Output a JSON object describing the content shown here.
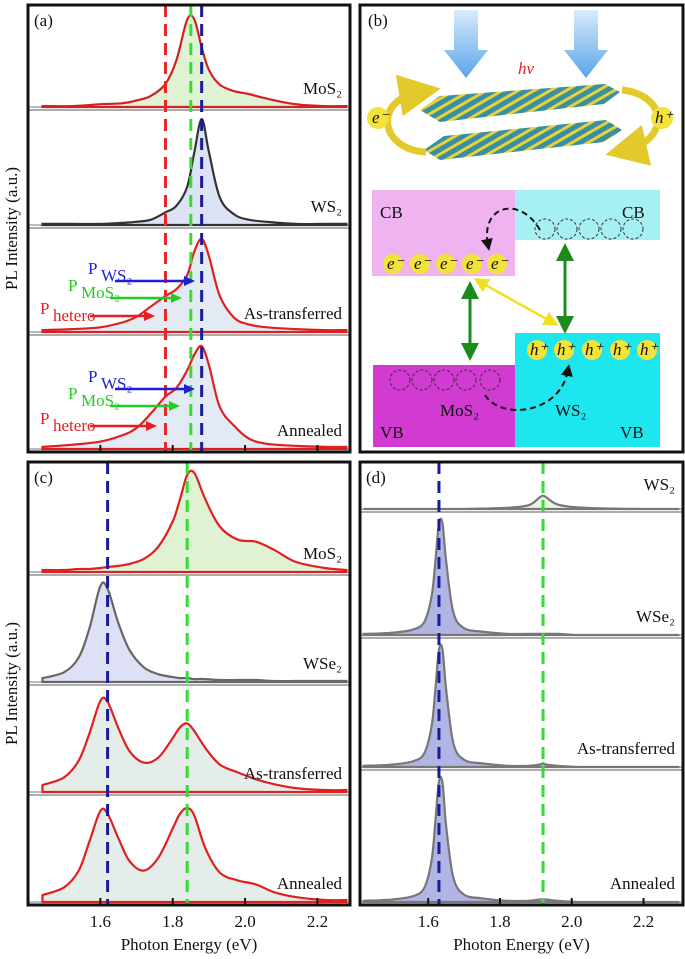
{
  "chart_data": [
    {
      "type": "line",
      "label": "(a)",
      "ylabel": "PL Intensity (a.u.)",
      "xlim": [
        1.4,
        2.29
      ],
      "xticks": [
        1.6,
        1.8,
        2,
        2.2
      ],
      "show_tick_labels": false,
      "x": [
        1.44,
        1.52,
        1.6,
        1.66,
        1.7,
        1.74,
        1.78,
        1.81,
        1.84,
        1.86,
        1.88,
        1.9,
        1.93,
        1.97,
        2.01,
        2.06,
        2.14,
        2.22,
        2.28
      ],
      "series": [
        {
          "name": "MoS₂",
          "color": "#d42020",
          "fill": "#d7efc8",
          "values": [
            0.01,
            0.01,
            0.03,
            0.04,
            0.07,
            0.12,
            0.25,
            0.5,
            0.94,
            0.94,
            0.64,
            0.4,
            0.24,
            0.17,
            0.14,
            0.09,
            0.03,
            0.01,
            0.01
          ]
        },
        {
          "name": "WS₂",
          "color": "#333333",
          "fill": "#d3dcf2",
          "values": [
            0.01,
            0.01,
            0.01,
            0.02,
            0.03,
            0.05,
            0.12,
            0.18,
            0.36,
            0.69,
            1,
            0.69,
            0.26,
            0.1,
            0.05,
            0.03,
            0.01,
            0.01,
            0.01
          ]
        },
        {
          "name": "As-transferred",
          "color": "#e02020",
          "fill": "#dbe6f0",
          "values": [
            0.02,
            0.03,
            0.05,
            0.1,
            0.16,
            0.27,
            0.38,
            0.45,
            0.6,
            0.85,
            0.98,
            0.8,
            0.38,
            0.15,
            0.08,
            0.05,
            0.03,
            0.02,
            0.02
          ]
        },
        {
          "name": "Annealed",
          "color": "#e02020",
          "fill": "#dbe6f0",
          "values": [
            0.02,
            0.04,
            0.07,
            0.13,
            0.2,
            0.34,
            0.5,
            0.58,
            0.75,
            0.9,
            0.98,
            0.8,
            0.4,
            0.22,
            0.1,
            0.05,
            0.03,
            0.02,
            0.02
          ]
        }
      ],
      "vlines": [
        {
          "x": 1.78,
          "color": "#e8262a"
        },
        {
          "x": 1.85,
          "color": "#33dd33"
        },
        {
          "x": 1.88,
          "color": "#1a1a9a"
        }
      ],
      "annotations": [
        {
          "text": "P",
          "sub": "WS₂",
          "color": "#1f1fd6"
        },
        {
          "text": "P",
          "sub": "MoS₂",
          "color": "#22cc22"
        },
        {
          "text": "P",
          "sub": "hetero",
          "color": "#e61e1e"
        },
        {
          "text": "P",
          "sub": "WS₂",
          "color": "#1f1fd6"
        },
        {
          "text": "P",
          "sub": "MoS₂",
          "color": "#22cc22"
        },
        {
          "text": "P",
          "sub": "hetero",
          "color": "#e61e1e"
        }
      ]
    },
    {
      "type": "line",
      "label": "(c)",
      "ylabel": "PL Intensity (a.u.)",
      "xlabel": "Photon Energy (eV)",
      "xlim": [
        1.4,
        2.29
      ],
      "xticks": [
        1.6,
        1.8,
        {
          "value": 2,
          "label": "2.0"
        },
        2.2
      ],
      "show_tick_labels": true,
      "x": [
        1.44,
        1.5,
        1.54,
        1.57,
        1.6,
        1.62,
        1.65,
        1.68,
        1.72,
        1.76,
        1.8,
        1.82,
        1.84,
        1.86,
        1.89,
        1.93,
        1.98,
        2.03,
        2.08,
        2.14,
        2.22,
        2.28
      ],
      "series": [
        {
          "name": "MoS₂",
          "color": "#e02020",
          "fill": "#d7efc8",
          "values": [
            0.02,
            0.02,
            0.03,
            0.03,
            0.04,
            0.05,
            0.06,
            0.08,
            0.13,
            0.25,
            0.5,
            0.72,
            0.96,
            0.98,
            0.72,
            0.45,
            0.32,
            0.3,
            0.22,
            0.1,
            0.04,
            0.02
          ]
        },
        {
          "name": "WSe₂",
          "color": "#666666",
          "fill": "#d6daf2",
          "values": [
            0.04,
            0.1,
            0.25,
            0.55,
            0.98,
            0.95,
            0.6,
            0.33,
            0.15,
            0.08,
            0.05,
            0.04,
            0.04,
            0.03,
            0.03,
            0.02,
            0.02,
            0.02,
            0.01,
            0.01,
            0.01,
            0.01
          ]
        },
        {
          "name": "As-transferred",
          "color": "#e02020",
          "fill": "#dfe9e6",
          "values": [
            0.07,
            0.15,
            0.32,
            0.6,
            0.93,
            0.92,
            0.65,
            0.42,
            0.3,
            0.35,
            0.55,
            0.66,
            0.7,
            0.62,
            0.45,
            0.28,
            0.2,
            0.13,
            0.08,
            0.04,
            0.02,
            0.02
          ]
        },
        {
          "name": "Annealed",
          "color": "#e02020",
          "fill": "#dfe9e6",
          "values": [
            0.07,
            0.15,
            0.32,
            0.62,
            0.93,
            0.9,
            0.65,
            0.42,
            0.32,
            0.45,
            0.75,
            0.9,
            0.96,
            0.88,
            0.55,
            0.3,
            0.22,
            0.18,
            0.1,
            0.05,
            0.02,
            0.02
          ]
        }
      ],
      "vlines": [
        {
          "x": 1.62,
          "color": "#1a1a9a"
        },
        {
          "x": 1.84,
          "color": "#33dd33"
        }
      ]
    },
    {
      "type": "line",
      "label": "(d)",
      "xlabel": "Photon Energy (eV)",
      "xlim": [
        1.41,
        2.31
      ],
      "xticks": [
        1.6,
        1.8,
        {
          "value": 2,
          "label": "2.0"
        },
        2.2
      ],
      "show_tick_labels": true,
      "x": [
        1.42,
        1.5,
        1.56,
        1.59,
        1.61,
        1.62,
        1.63,
        1.64,
        1.65,
        1.67,
        1.7,
        1.75,
        1.82,
        1.88,
        1.91,
        1.92,
        1.93,
        1.96,
        2.02,
        2.12,
        2.22,
        2.3
      ],
      "series": [
        {
          "name": "WS₂",
          "color": "#777777",
          "fill": "#e3f3dc",
          "values": [
            0,
            0,
            0,
            0,
            0,
            0,
            0,
            0,
            0,
            0,
            0,
            0.01,
            0.03,
            0.1,
            0.3,
            0.35,
            0.3,
            0.12,
            0.04,
            0.01,
            0,
            0
          ]
        },
        {
          "name": "WSe₂",
          "color": "#777777",
          "fill": "#9ca3dd",
          "values": [
            0.01,
            0.02,
            0.05,
            0.12,
            0.35,
            0.65,
            0.98,
            0.98,
            0.65,
            0.2,
            0.06,
            0.03,
            0.01,
            0.01,
            0.01,
            0.01,
            0.01,
            0.01,
            0,
            0,
            0,
            0
          ]
        },
        {
          "name": "As-transferred",
          "color": "#777777",
          "fill": "#9ca3dd",
          "values": [
            0.01,
            0.02,
            0.05,
            0.12,
            0.35,
            0.65,
            0.98,
            0.98,
            0.65,
            0.2,
            0.06,
            0.03,
            0.01,
            0.01,
            0.02,
            0.03,
            0.02,
            0.01,
            0,
            0,
            0,
            0
          ]
        },
        {
          "name": "Annealed",
          "color": "#777777",
          "fill": "#9ca3dd",
          "values": [
            0.01,
            0.02,
            0.05,
            0.12,
            0.35,
            0.66,
            0.98,
            0.97,
            0.62,
            0.2,
            0.06,
            0.03,
            0.01,
            0.01,
            0.02,
            0.02,
            0.02,
            0.01,
            0,
            0,
            0,
            0
          ]
        }
      ],
      "vlines": [
        {
          "x": 1.63,
          "color": "#1a1a9a"
        },
        {
          "x": 1.92,
          "color": "#33dd33"
        }
      ]
    }
  ],
  "diagram": {
    "label": "(b)",
    "photon": "hν",
    "electron": "e⁻",
    "hole": "h⁺",
    "cb": "CB",
    "vb": "VB",
    "materials": [
      "MoS₂",
      "WS₂"
    ]
  }
}
